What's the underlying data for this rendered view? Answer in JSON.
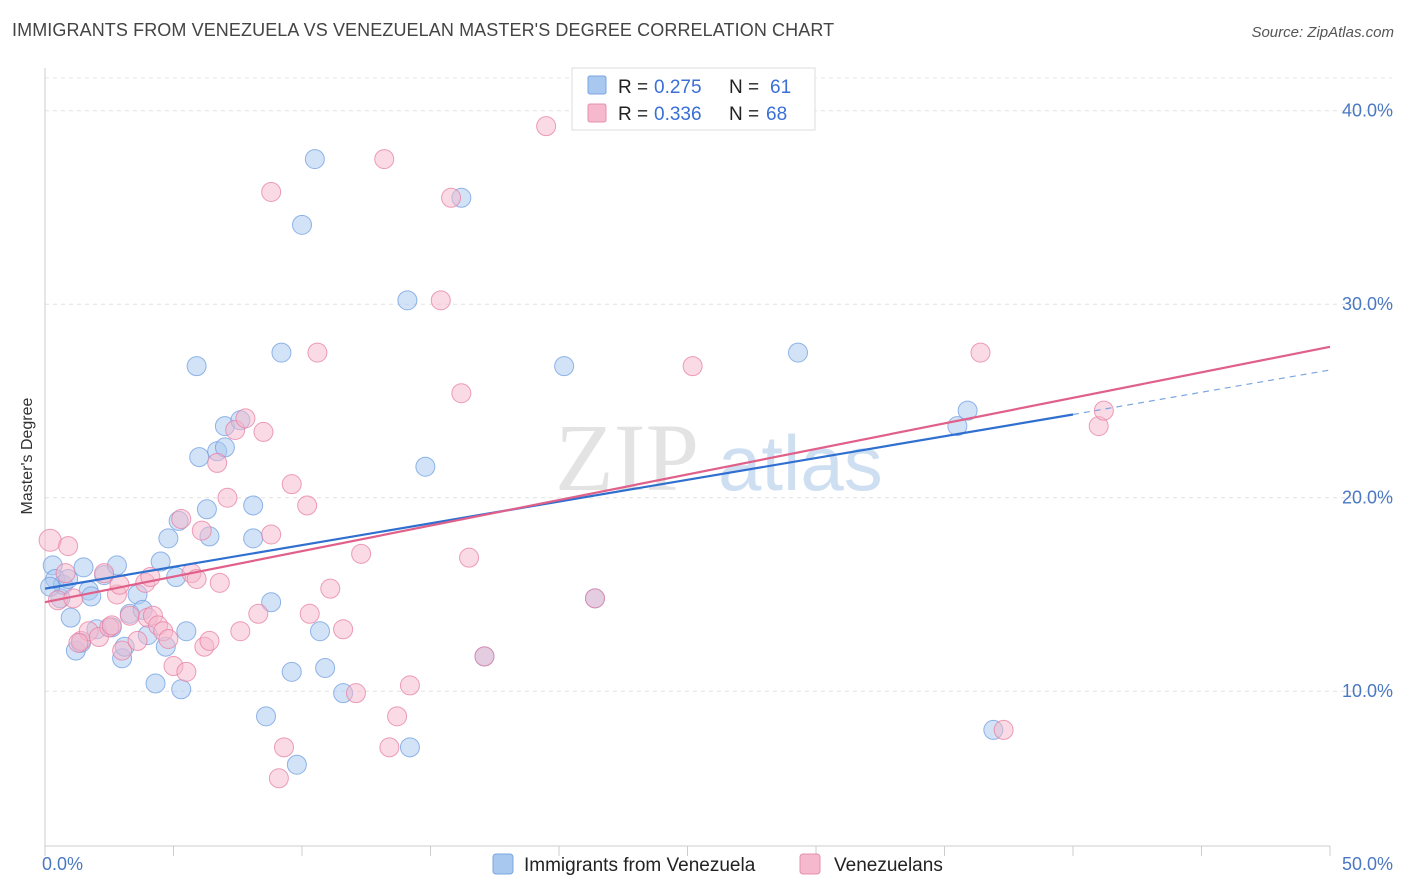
{
  "title": "IMMIGRANTS FROM VENEZUELA VS VENEZUELAN MASTER'S DEGREE CORRELATION CHART",
  "source": "Source: ZipAtlas.com",
  "watermark": {
    "zip": "ZIP",
    "atlas": "atlas"
  },
  "legend": {
    "rows": [
      {
        "r_label": "R =",
        "r_value": "0.275",
        "n_label": "N =",
        "n_value": "61",
        "color": "#a8c8f0"
      },
      {
        "r_label": "R =",
        "r_value": "0.336",
        "n_label": "N =",
        "n_value": "68",
        "color": "#f5b8cc"
      }
    ]
  },
  "chart_data": {
    "type": "scatter",
    "title": "IMMIGRANTS FROM VENEZUELA VS VENEZUELAN MASTER'S DEGREE CORRELATION CHART",
    "xlabel": "",
    "ylabel": "Master's Degree",
    "xlim": [
      0,
      50
    ],
    "ylim": [
      2,
      42
    ],
    "x_tick_labels": [
      "0.0%",
      "50.0%"
    ],
    "y_ticks": [
      10,
      20,
      30,
      40
    ],
    "y_tick_labels": [
      "10.0%",
      "20.0%",
      "30.0%",
      "40.0%"
    ],
    "grid": true,
    "legend_position": "top-center",
    "series": [
      {
        "name": "Immigrants from Venezuela",
        "color": "#6f9ee0",
        "fill": "#a8c8f0",
        "trend": {
          "x": [
            0,
            40
          ],
          "y": [
            15.3,
            24.3
          ],
          "dashed_to": [
            50,
            26.6
          ]
        },
        "points": [
          [
            0.3,
            16.5
          ],
          [
            0.4,
            15.8
          ],
          [
            0.6,
            14.8
          ],
          [
            0.7,
            15.5
          ],
          [
            0.9,
            15.8
          ],
          [
            1.0,
            13.8
          ],
          [
            1.2,
            12.1
          ],
          [
            1.4,
            12.5
          ],
          [
            1.7,
            15.2
          ],
          [
            1.8,
            14.9
          ],
          [
            2.0,
            13.2
          ],
          [
            2.3,
            16.0
          ],
          [
            2.6,
            13.3
          ],
          [
            2.8,
            16.5
          ],
          [
            3.0,
            11.7
          ],
          [
            3.1,
            12.3
          ],
          [
            3.3,
            14.0
          ],
          [
            3.6,
            15.0
          ],
          [
            3.8,
            14.2
          ],
          [
            4.0,
            12.9
          ],
          [
            4.3,
            10.4
          ],
          [
            4.5,
            16.7
          ],
          [
            4.7,
            12.3
          ],
          [
            4.8,
            17.9
          ],
          [
            5.1,
            15.9
          ],
          [
            5.2,
            18.8
          ],
          [
            5.3,
            10.1
          ],
          [
            5.5,
            13.1
          ],
          [
            5.9,
            26.8
          ],
          [
            6.0,
            22.1
          ],
          [
            6.3,
            19.4
          ],
          [
            6.4,
            18.0
          ],
          [
            6.7,
            22.4
          ],
          [
            7.0,
            22.6
          ],
          [
            7.0,
            23.7
          ],
          [
            7.6,
            24.0
          ],
          [
            8.1,
            19.6
          ],
          [
            8.1,
            17.9
          ],
          [
            8.6,
            8.7
          ],
          [
            8.8,
            14.6
          ],
          [
            9.2,
            27.5
          ],
          [
            9.6,
            11.0
          ],
          [
            9.8,
            6.2
          ],
          [
            10.0,
            34.1
          ],
          [
            10.5,
            37.5
          ],
          [
            10.7,
            13.1
          ],
          [
            10.9,
            11.2
          ],
          [
            11.6,
            9.9
          ],
          [
            14.1,
            30.2
          ],
          [
            14.2,
            7.1
          ],
          [
            14.8,
            21.6
          ],
          [
            16.2,
            35.5
          ],
          [
            17.1,
            11.8
          ],
          [
            20.2,
            26.8
          ],
          [
            21.4,
            14.8
          ],
          [
            29.3,
            27.5
          ],
          [
            35.5,
            23.7
          ],
          [
            35.9,
            24.5
          ],
          [
            36.9,
            8.0
          ],
          [
            0.2,
            15.4
          ],
          [
            1.5,
            16.4
          ]
        ]
      },
      {
        "name": "Venezuelans",
        "color": "#e77fa1",
        "fill": "#f5b8cc",
        "trend": {
          "x": [
            0,
            50
          ],
          "y": [
            14.6,
            27.8
          ]
        },
        "points": [
          [
            0.2,
            17.8
          ],
          [
            0.5,
            14.7
          ],
          [
            0.8,
            16.1
          ],
          [
            1.1,
            14.8
          ],
          [
            1.4,
            12.6
          ],
          [
            1.7,
            13.1
          ],
          [
            2.1,
            12.8
          ],
          [
            2.3,
            16.1
          ],
          [
            2.5,
            13.3
          ],
          [
            2.6,
            13.4
          ],
          [
            2.8,
            15.0
          ],
          [
            3.0,
            12.1
          ],
          [
            3.3,
            13.9
          ],
          [
            3.6,
            12.6
          ],
          [
            3.9,
            15.6
          ],
          [
            4.0,
            13.8
          ],
          [
            4.2,
            13.9
          ],
          [
            4.4,
            13.4
          ],
          [
            4.6,
            13.1
          ],
          [
            4.8,
            12.7
          ],
          [
            5.0,
            11.3
          ],
          [
            5.3,
            18.9
          ],
          [
            5.5,
            11.0
          ],
          [
            5.7,
            16.1
          ],
          [
            5.9,
            15.8
          ],
          [
            6.2,
            12.3
          ],
          [
            6.4,
            12.6
          ],
          [
            6.7,
            21.8
          ],
          [
            6.8,
            15.6
          ],
          [
            7.1,
            20.0
          ],
          [
            7.4,
            23.5
          ],
          [
            7.6,
            13.1
          ],
          [
            7.8,
            24.1
          ],
          [
            8.3,
            14.0
          ],
          [
            8.5,
            23.4
          ],
          [
            8.8,
            18.1
          ],
          [
            8.8,
            35.8
          ],
          [
            9.1,
            5.5
          ],
          [
            9.3,
            7.1
          ],
          [
            9.6,
            20.7
          ],
          [
            10.2,
            19.6
          ],
          [
            10.3,
            14.0
          ],
          [
            10.6,
            27.5
          ],
          [
            11.1,
            15.3
          ],
          [
            11.6,
            13.2
          ],
          [
            12.1,
            9.9
          ],
          [
            12.3,
            17.1
          ],
          [
            13.2,
            37.5
          ],
          [
            13.4,
            7.1
          ],
          [
            13.7,
            8.7
          ],
          [
            14.2,
            10.3
          ],
          [
            15.4,
            30.2
          ],
          [
            15.8,
            35.5
          ],
          [
            16.2,
            25.4
          ],
          [
            16.5,
            16.9
          ],
          [
            17.1,
            11.8
          ],
          [
            19.5,
            39.2
          ],
          [
            21.4,
            14.8
          ],
          [
            25.2,
            26.8
          ],
          [
            36.4,
            27.5
          ],
          [
            37.3,
            8.0
          ],
          [
            41.0,
            23.7
          ],
          [
            41.2,
            24.5
          ],
          [
            0.9,
            17.5
          ],
          [
            1.3,
            12.5
          ],
          [
            2.9,
            15.5
          ],
          [
            4.1,
            15.9
          ],
          [
            6.1,
            18.3
          ]
        ]
      }
    ]
  },
  "bottom_legend": [
    {
      "label": "Immigrants from Venezuela",
      "color": "#a8c8f0"
    },
    {
      "label": "Venezuelans",
      "color": "#f5b8cc"
    }
  ]
}
